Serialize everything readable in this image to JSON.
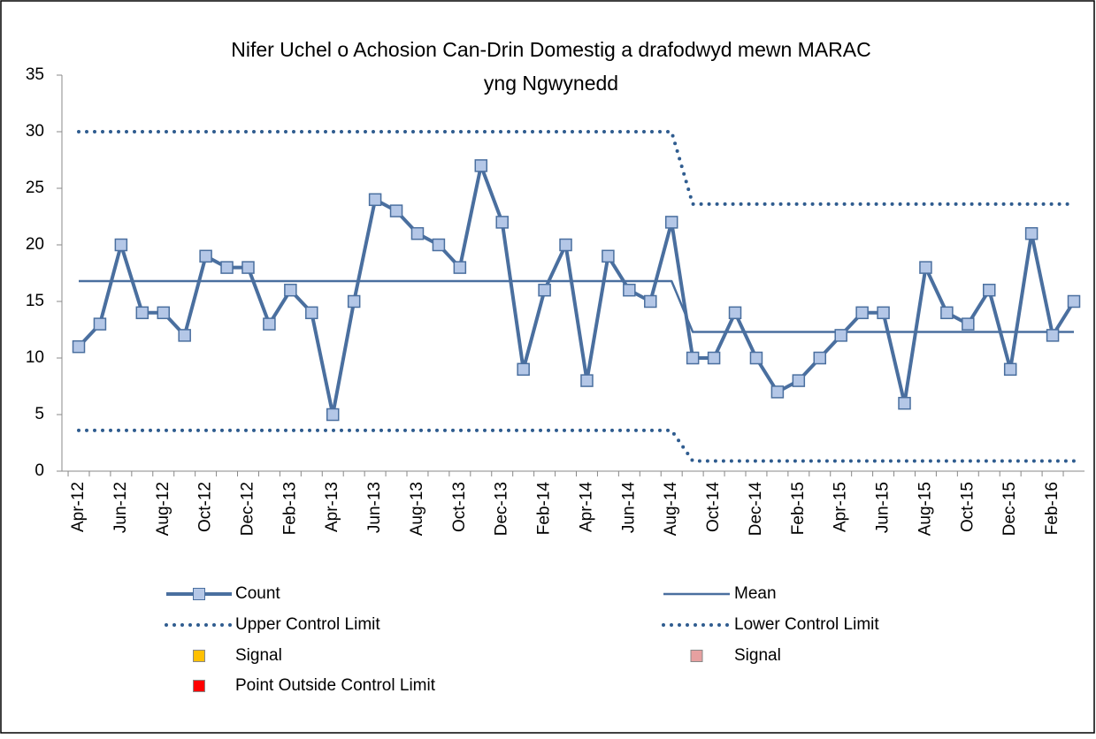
{
  "chart_data": {
    "type": "line",
    "title": [
      "Nifer Uchel o Achosion Can-Drin Domestig a drafodwyd mewn MARAC",
      "yng Ngwynedd"
    ],
    "categories": [
      "Apr-12",
      null,
      "Jun-12",
      null,
      "Aug-12",
      null,
      "Oct-12",
      null,
      "Dec-12",
      null,
      "Feb-13",
      null,
      "Apr-13",
      null,
      "Jun-13",
      null,
      "Aug-13",
      null,
      "Oct-13",
      null,
      "Dec-13",
      null,
      "Feb-14",
      null,
      "Apr-14",
      null,
      "Jun-14",
      null,
      "Aug-14",
      null,
      "Oct-14",
      null,
      "Dec-14",
      null,
      "Feb-15",
      null,
      "Apr-15",
      null,
      "Jun-15",
      null,
      "Aug-15",
      null,
      "Oct-15",
      null,
      "Dec-15",
      null,
      "Feb-16",
      null
    ],
    "ylim": [
      0,
      35
    ],
    "yticks": [
      0,
      5,
      10,
      15,
      20,
      25,
      30,
      35
    ],
    "grid": false,
    "legend": "bottom",
    "series": [
      {
        "name": "Count",
        "color": "#4a6f9f",
        "marker": "square",
        "marker_color": "#b4c7e7",
        "style": "solid",
        "width": 4,
        "values": [
          11,
          13,
          20,
          14,
          14,
          12,
          19,
          18,
          18,
          13,
          16,
          14,
          5,
          15,
          24,
          23,
          21,
          20,
          18,
          27,
          22,
          9,
          16,
          20,
          8,
          19,
          16,
          15,
          22,
          10,
          10,
          14,
          10,
          7,
          8,
          10,
          12,
          14,
          14,
          6,
          18,
          14,
          13,
          16,
          9,
          21,
          12,
          15
        ]
      },
      {
        "name": "Mean",
        "color": "#4a6f9f",
        "style": "solid",
        "width": 2.5,
        "values": [
          16.8,
          16.8,
          16.8,
          16.8,
          16.8,
          16.8,
          16.8,
          16.8,
          16.8,
          16.8,
          16.8,
          16.8,
          16.8,
          16.8,
          16.8,
          16.8,
          16.8,
          16.8,
          16.8,
          16.8,
          16.8,
          16.8,
          16.8,
          16.8,
          16.8,
          16.8,
          16.8,
          16.8,
          16.8,
          12.3,
          12.3,
          12.3,
          12.3,
          12.3,
          12.3,
          12.3,
          12.3,
          12.3,
          12.3,
          12.3,
          12.3,
          12.3,
          12.3,
          12.3,
          12.3,
          12.3,
          12.3,
          12.3
        ]
      },
      {
        "name": "Upper Control Limit",
        "color": "#2f5c8f",
        "style": "dotted",
        "width": 4,
        "values": [
          30,
          30,
          30,
          30,
          30,
          30,
          30,
          30,
          30,
          30,
          30,
          30,
          30,
          30,
          30,
          30,
          30,
          30,
          30,
          30,
          30,
          30,
          30,
          30,
          30,
          30,
          30,
          30,
          30,
          23.6,
          23.6,
          23.6,
          23.6,
          23.6,
          23.6,
          23.6,
          23.6,
          23.6,
          23.6,
          23.6,
          23.6,
          23.6,
          23.6,
          23.6,
          23.6,
          23.6,
          23.6,
          23.6
        ]
      },
      {
        "name": "Lower Control Limit",
        "color": "#2f5c8f",
        "style": "dotted",
        "width": 4,
        "values": [
          3.6,
          3.6,
          3.6,
          3.6,
          3.6,
          3.6,
          3.6,
          3.6,
          3.6,
          3.6,
          3.6,
          3.6,
          3.6,
          3.6,
          3.6,
          3.6,
          3.6,
          3.6,
          3.6,
          3.6,
          3.6,
          3.6,
          3.6,
          3.6,
          3.6,
          3.6,
          3.6,
          3.6,
          3.6,
          0.9,
          0.9,
          0.9,
          0.9,
          0.9,
          0.9,
          0.9,
          0.9,
          0.9,
          0.9,
          0.9,
          0.9,
          0.9,
          0.9,
          0.9,
          0.9,
          0.9,
          0.9,
          0.9
        ]
      },
      {
        "name": "Signal",
        "color": "#ffc000",
        "marker": "square",
        "style": "none",
        "values": [
          null,
          null,
          null,
          null,
          null,
          null,
          null,
          null,
          null,
          null,
          null,
          null,
          null,
          null,
          null,
          null,
          null,
          null,
          null,
          null,
          null,
          null,
          null,
          null,
          null,
          null,
          null,
          null,
          null,
          null,
          null,
          null,
          null,
          null,
          null,
          null,
          null,
          null,
          null,
          null,
          null,
          null,
          null,
          null,
          null,
          null,
          null,
          null
        ]
      },
      {
        "name": "Signal",
        "color": "#e6a0a0",
        "marker": "square",
        "style": "none",
        "values": [
          null,
          null,
          null,
          null,
          null,
          null,
          null,
          null,
          null,
          null,
          null,
          null,
          null,
          null,
          null,
          null,
          null,
          null,
          null,
          null,
          null,
          null,
          null,
          null,
          null,
          null,
          null,
          null,
          null,
          null,
          null,
          null,
          null,
          null,
          null,
          null,
          null,
          null,
          null,
          null,
          null,
          null,
          null,
          null,
          null,
          null,
          null,
          null
        ]
      },
      {
        "name": "Point Outside Control Limit",
        "color": "#ff0000",
        "marker": "square",
        "style": "none",
        "values": [
          null,
          null,
          null,
          null,
          null,
          null,
          null,
          null,
          null,
          null,
          null,
          null,
          null,
          null,
          null,
          null,
          null,
          null,
          null,
          null,
          null,
          null,
          null,
          null,
          null,
          null,
          null,
          null,
          null,
          null,
          null,
          null,
          null,
          null,
          null,
          null,
          null,
          null,
          null,
          null,
          null,
          null,
          null,
          null,
          null,
          null,
          null,
          null
        ]
      }
    ]
  }
}
